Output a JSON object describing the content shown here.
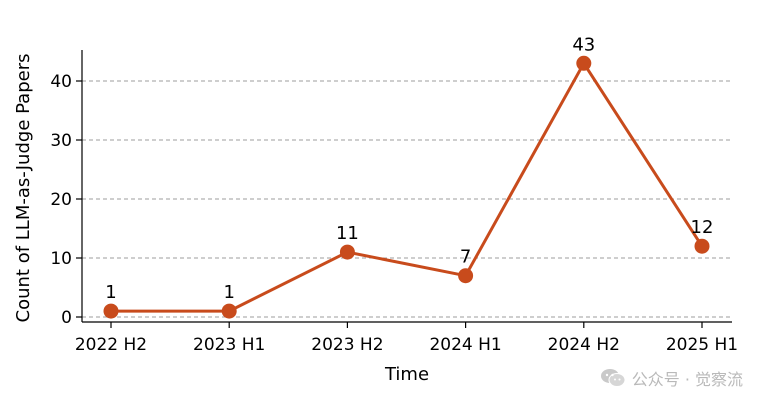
{
  "chart_data": {
    "type": "line",
    "categories": [
      "2022 H2",
      "2023 H1",
      "2023 H2",
      "2024 H1",
      "2024 H2",
      "2025 H1"
    ],
    "values": [
      1,
      1,
      11,
      7,
      43,
      12
    ],
    "data_labels": [
      "1",
      "1",
      "11",
      "7",
      "43",
      "12"
    ],
    "title": "",
    "xlabel": "Time",
    "ylabel": "Count of LLM-as-Judge Papers",
    "ylim": [
      0,
      45
    ],
    "yticks": [
      0,
      10,
      20,
      30,
      40
    ],
    "grid": "horizontal-dashed",
    "line_color": "#c84b1c"
  },
  "watermark": {
    "text": "公众号 · 觉察流",
    "icon": "wechat-icon"
  }
}
